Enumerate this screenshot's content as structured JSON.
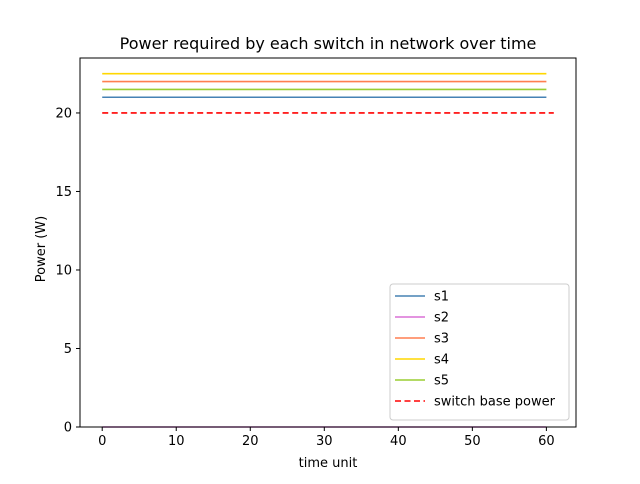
{
  "chart_data": {
    "type": "line",
    "title": "Power required by each switch in network over time",
    "xlabel": "time unit",
    "ylabel": "Power (W)",
    "xlim": [
      -3,
      64
    ],
    "ylim": [
      0,
      23.5
    ],
    "xticks": [
      0,
      10,
      20,
      30,
      40,
      50,
      60
    ],
    "yticks": [
      0,
      5,
      10,
      15,
      20
    ],
    "grid": false,
    "legend_position": "lower right",
    "series": [
      {
        "name": "s1",
        "color": "#4682b4",
        "style": "solid",
        "x": [
          0,
          60
        ],
        "y": [
          21.0,
          21.0
        ]
      },
      {
        "name": "s2",
        "color": "#da70d6",
        "style": "solid",
        "x": [
          0,
          60
        ],
        "y": [
          0.0,
          0.0
        ]
      },
      {
        "name": "s3",
        "color": "#ff7f50",
        "style": "solid",
        "x": [
          0,
          60
        ],
        "y": [
          22.0,
          22.0
        ]
      },
      {
        "name": "s4",
        "color": "#ffd700",
        "style": "solid",
        "x": [
          0,
          60
        ],
        "y": [
          22.5,
          22.5
        ]
      },
      {
        "name": "s5",
        "color": "#9acd32",
        "style": "solid",
        "x": [
          0,
          60
        ],
        "y": [
          21.5,
          21.5
        ]
      },
      {
        "name": "switch base power",
        "color": "#ff0000",
        "style": "dashed",
        "x": [
          0,
          61
        ],
        "y": [
          20.0,
          20.0
        ]
      }
    ]
  }
}
